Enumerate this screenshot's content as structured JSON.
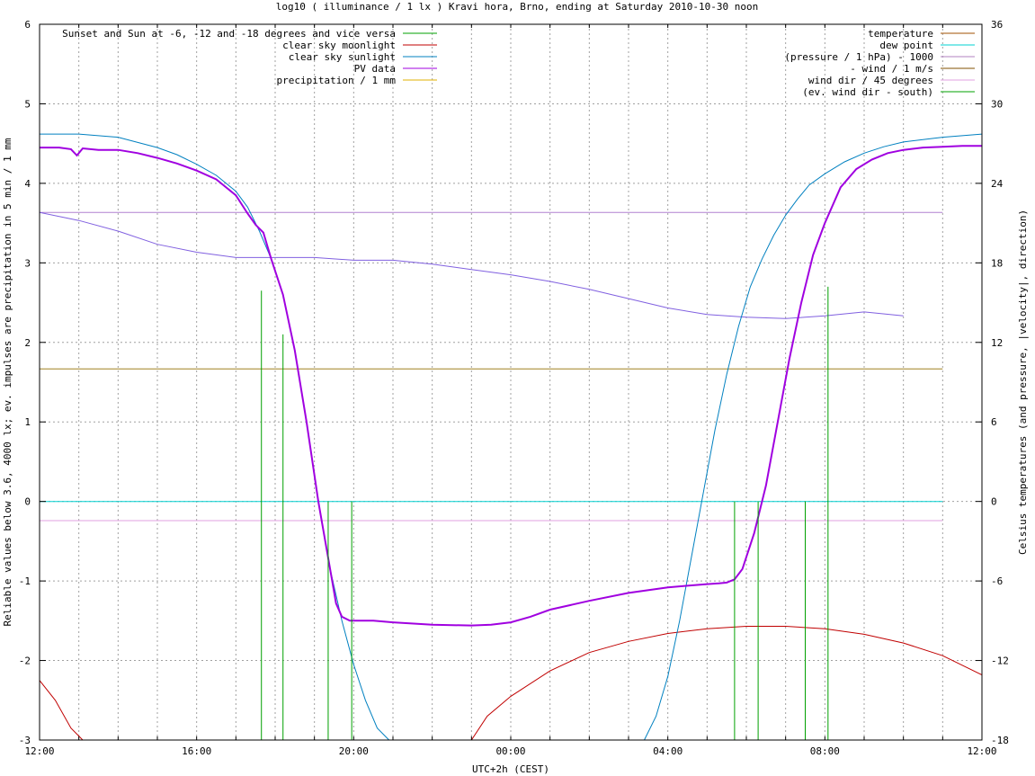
{
  "chart_data": {
    "type": "line",
    "title": "log10 ( illuminance / 1 lx ) Kravi hora, Brno, ending at Saturday 2010-10-30 noon",
    "xlabel": "UTC+2h (CEST)",
    "ylabel": "Reliable values below 3.6, 4000 lx; ev. impulses are precipitation in 5 min / 1 mm",
    "y2label": "Celsius temperatures (and pressure, |velocity|, direction)",
    "xlim_hours": [
      0,
      24
    ],
    "ylim": [
      -3,
      6
    ],
    "y2lim": [
      -18,
      36
    ],
    "grid": true,
    "x_ticks": [
      {
        "h": 0,
        "label": "12:00"
      },
      {
        "h": 4,
        "label": "16:00"
      },
      {
        "h": 8,
        "label": "20:00"
      },
      {
        "h": 12,
        "label": "00:00"
      },
      {
        "h": 16,
        "label": "04:00"
      },
      {
        "h": 20,
        "label": "08:00"
      },
      {
        "h": 24,
        "label": "12:00"
      }
    ],
    "y_ticks": [
      "-3",
      "-2",
      "-1",
      "0",
      "1",
      "2",
      "3",
      "4",
      "5",
      "6"
    ],
    "y2_ticks": [
      "-18",
      "-12",
      "-6",
      "0",
      "6",
      "12",
      "18",
      "24",
      "30",
      "36"
    ],
    "legend_left": [
      {
        "name": "Sunset and Sun at -6, -12 and -18 degrees and vice versa",
        "color": "#00a000"
      },
      {
        "name": "clear sky moonlight",
        "color": "#c00000"
      },
      {
        "name": "clear sky sunlight",
        "color": "#0080c0"
      },
      {
        "name": "PV data",
        "color": "#a000e0"
      },
      {
        "name": "precipitation / 1 mm",
        "color": "#e0b000"
      }
    ],
    "legend_right": [
      {
        "name": "temperature",
        "color": "#a05000"
      },
      {
        "name": "dew point",
        "color": "#00d0d0"
      },
      {
        "name": "(pressure / 1 hPa) - 1000",
        "color": "#b080c0"
      },
      {
        "name": "- wind / 1 m/s",
        "color": "#805000"
      },
      {
        "name": "wind dir / 45 degrees",
        "color": "#e0a0e0"
      },
      {
        "name": "(ev. wind dir - south)",
        "color": "#00a000"
      }
    ],
    "sun_event_impulses": {
      "color": "#00a000",
      "x_hours": [
        5.65,
        6.2,
        7.35,
        7.95,
        17.7,
        18.3,
        19.5,
        20.08
      ],
      "y_top": [
        2.65,
        2.1,
        0.0,
        0.0,
        0.0,
        0.0,
        0.0,
        2.7
      ]
    },
    "clear_sky_sunlight": {
      "color": "#0080c0",
      "x": [
        0,
        1,
        2,
        3,
        3.5,
        4,
        4.5,
        5,
        5.3,
        5.6,
        5.9,
        6.2,
        6.5,
        6.8,
        7.1,
        7.4,
        7.7,
        8.0,
        8.3,
        8.6,
        8.9,
        9.2,
        15.15,
        15.4,
        15.7,
        16.0,
        16.3,
        16.6,
        16.9,
        17.2,
        17.5,
        17.8,
        18.1,
        18.4,
        18.7,
        19.0,
        19.3,
        19.6,
        20.0,
        20.5,
        21.0,
        21.5,
        22.0,
        23.0,
        24.0
      ],
      "y": [
        4.62,
        4.62,
        4.58,
        4.45,
        4.36,
        4.24,
        4.1,
        3.9,
        3.7,
        3.4,
        3.05,
        2.6,
        1.9,
        1.0,
        0.0,
        -0.85,
        -1.5,
        -2.05,
        -2.5,
        -2.85,
        -3.0,
        -3.2,
        -3.2,
        -3.0,
        -2.7,
        -2.2,
        -1.5,
        -0.7,
        0.1,
        0.9,
        1.6,
        2.2,
        2.7,
        3.05,
        3.35,
        3.6,
        3.8,
        3.98,
        4.12,
        4.27,
        4.38,
        4.46,
        4.52,
        4.58,
        4.62
      ]
    },
    "pv_data": {
      "color": "#a000e0",
      "x": [
        0,
        0.5,
        0.8,
        0.95,
        1.1,
        1.5,
        2,
        2.5,
        3,
        3.5,
        4,
        4.5,
        5,
        5.3,
        5.5,
        5.7,
        5.9,
        6.2,
        6.5,
        6.8,
        7.1,
        7.4,
        7.55,
        7.7,
        7.9,
        8.2,
        8.5,
        9,
        10,
        11,
        11.5,
        12,
        12.5,
        13,
        14,
        15,
        16,
        16.5,
        17,
        17.3,
        17.5,
        17.7,
        17.9,
        18.2,
        18.5,
        18.8,
        19.1,
        19.4,
        19.7,
        20,
        20.4,
        20.8,
        21.2,
        21.6,
        22,
        22.5,
        23,
        23.5,
        24
      ],
      "y": [
        4.45,
        4.45,
        4.43,
        4.35,
        4.44,
        4.42,
        4.42,
        4.38,
        4.32,
        4.25,
        4.16,
        4.05,
        3.85,
        3.62,
        3.48,
        3.38,
        3.05,
        2.6,
        1.9,
        1.0,
        0.0,
        -0.85,
        -1.28,
        -1.45,
        -1.5,
        -1.5,
        -1.5,
        -1.52,
        -1.55,
        -1.56,
        -1.55,
        -1.52,
        -1.45,
        -1.36,
        -1.25,
        -1.15,
        -1.08,
        -1.06,
        -1.04,
        -1.03,
        -1.02,
        -0.98,
        -0.85,
        -0.4,
        0.2,
        1.0,
        1.8,
        2.5,
        3.1,
        3.5,
        3.95,
        4.18,
        4.3,
        4.38,
        4.42,
        4.45,
        4.46,
        4.47,
        4.47
      ]
    },
    "clear_sky_moonlight": {
      "color": "#c00000",
      "segments": [
        {
          "x": [
            0,
            0.4,
            0.8,
            1.1
          ],
          "y": [
            -2.25,
            -2.5,
            -2.85,
            -3.0
          ]
        },
        {
          "x": [
            11.0,
            11.4,
            12.0,
            13.0,
            14.0,
            15.0,
            16.0,
            17.0,
            18.0,
            19.0,
            20.0,
            21.0,
            22.0,
            23.0,
            24.0
          ],
          "y": [
            -3.0,
            -2.7,
            -2.45,
            -2.13,
            -1.9,
            -1.76,
            -1.66,
            -1.6,
            -1.57,
            -1.57,
            -1.6,
            -1.67,
            -1.78,
            -1.94,
            -2.18
          ]
        }
      ]
    },
    "pressure_minus_1000": {
      "color": "#8060e0",
      "x": [
        0,
        1,
        2,
        3,
        4,
        5,
        6,
        7,
        8,
        9,
        10,
        11,
        12,
        13,
        14,
        15,
        16,
        17,
        18,
        19,
        19.5,
        20,
        21,
        22
      ],
      "y2": [
        21.8,
        21.2,
        20.4,
        19.4,
        18.8,
        18.4,
        18.4,
        18.4,
        18.2,
        18.2,
        17.9,
        17.5,
        17.1,
        16.6,
        16.0,
        15.3,
        14.6,
        14.1,
        13.9,
        13.8,
        13.9,
        14.0,
        14.3,
        14.0
      ]
    },
    "dew_point": {
      "color": "#00d0d0",
      "x": [
        0,
        23
      ],
      "y2": [
        0,
        0
      ]
    },
    "temperature_flat": {
      "color": "#a08020",
      "x": [
        0,
        23
      ],
      "y2": [
        10,
        10
      ]
    },
    "wind_dir_flat": {
      "color": "#e0a0e0",
      "x": [
        0,
        23
      ],
      "y2": [
        -1.45,
        -1.45
      ]
    },
    "light_purple_flat": {
      "color": "#b080d0",
      "x": [
        0,
        23
      ],
      "y2": [
        21.8,
        21.8
      ]
    }
  }
}
